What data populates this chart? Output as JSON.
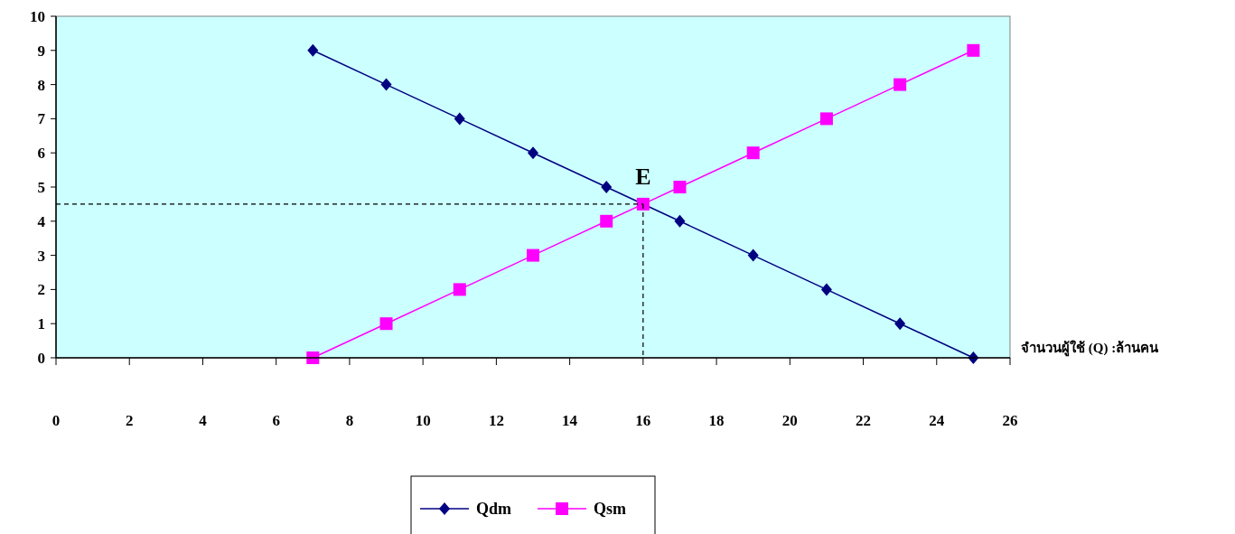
{
  "chart_data": {
    "type": "line",
    "xlabel": "จำนวนผู้ใช้ (Q) :ล้านคน",
    "xlim": [
      0,
      26
    ],
    "xticks": [
      0,
      2,
      4,
      6,
      8,
      10,
      12,
      14,
      16,
      18,
      20,
      22,
      24,
      26
    ],
    "ylim": [
      0,
      10
    ],
    "yticks": [
      0,
      1,
      2,
      3,
      4,
      5,
      6,
      7,
      8,
      9,
      10
    ],
    "grid": false,
    "legend": "bottom",
    "line_style": "solid",
    "series": [
      {
        "name": "Qdm",
        "color": "#000080",
        "marker": "diamond",
        "x": [
          7,
          9,
          11,
          13,
          15,
          17,
          19,
          21,
          23,
          25
        ],
        "values": [
          9,
          8,
          7,
          6,
          5,
          4,
          3,
          2,
          1,
          0
        ]
      },
      {
        "name": "Qsm",
        "color": "#ff00ff",
        "marker": "square",
        "x": [
          7,
          9,
          11,
          13,
          15,
          16,
          17,
          19,
          21,
          23,
          25
        ],
        "values": [
          0,
          1,
          2,
          3,
          4,
          4.5,
          5,
          6,
          7,
          8,
          9
        ]
      },
      {
        "color": "#000000",
        "marker": "none",
        "line_style": "dashed",
        "x": [
          0,
          16
        ],
        "values": [
          4.5,
          4.5
        ]
      },
      {
        "color": "#000000",
        "marker": "none",
        "line_style": "dashed",
        "x": [
          16,
          16
        ],
        "values": [
          4.5,
          0
        ]
      }
    ],
    "annotations": [
      {
        "text": "E",
        "x": 16,
        "y": 4.5
      }
    ]
  }
}
